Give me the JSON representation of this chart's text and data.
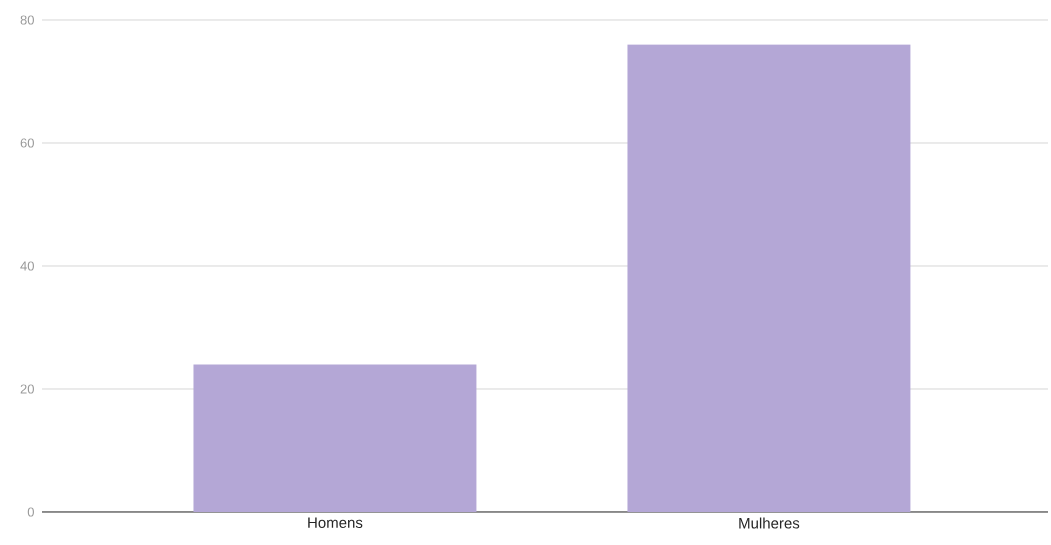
{
  "chart_data": {
    "type": "bar",
    "categories": [
      "Homens",
      "Mulheres"
    ],
    "values": [
      24,
      76
    ],
    "color": "#b4a7d6",
    "ylim": [
      0,
      80
    ],
    "yticks": [
      0,
      20,
      40,
      60,
      80
    ],
    "grid": "y"
  }
}
